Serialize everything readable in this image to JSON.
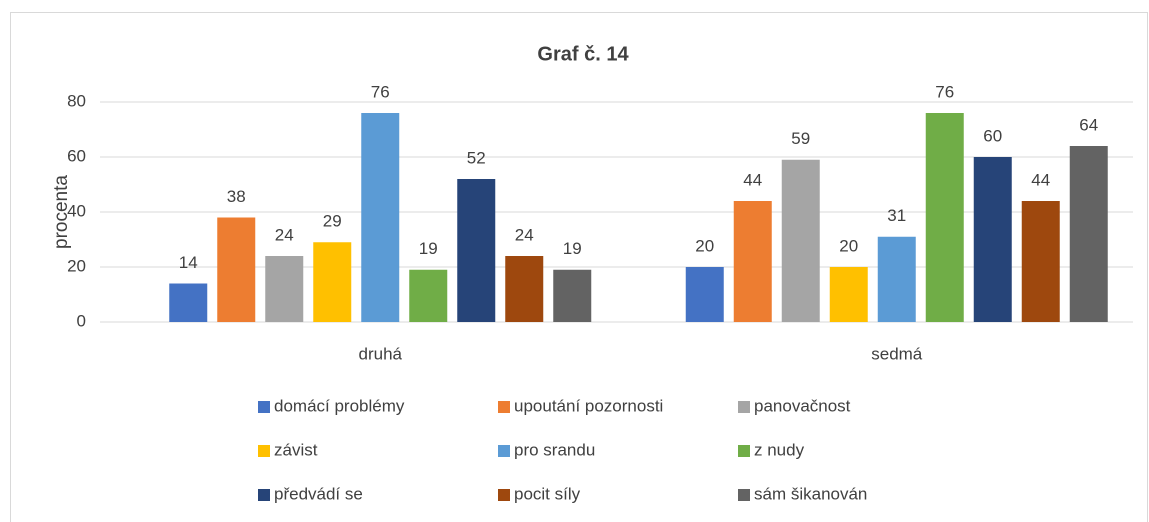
{
  "chart_data": {
    "type": "bar",
    "title": "Graf č. 14",
    "y_label": "procenta",
    "categories": [
      "druhá",
      "sedmá"
    ],
    "series": [
      {
        "name": "domácí problémy",
        "color": "#4472c4",
        "values": [
          14,
          20
        ]
      },
      {
        "name": "upoutání pozornosti",
        "color": "#ed7d31",
        "values": [
          38,
          44
        ]
      },
      {
        "name": "panovačnost",
        "color": "#a5a5a5",
        "values": [
          24,
          59
        ]
      },
      {
        "name": "závist",
        "color": "#ffc000",
        "values": [
          29,
          20
        ]
      },
      {
        "name": "pro srandu",
        "color": "#5b9bd5",
        "values": [
          76,
          31
        ]
      },
      {
        "name": "z nudy",
        "color": "#70ad47",
        "values": [
          19,
          76
        ]
      },
      {
        "name": "předvádí se",
        "color": "#264478",
        "values": [
          52,
          60
        ]
      },
      {
        "name": "pocit síly",
        "color": "#9e480e",
        "values": [
          24,
          44
        ]
      },
      {
        "name": "sám šikanován",
        "color": "#636363",
        "values": [
          19,
          64
        ]
      }
    ],
    "ylim": [
      0,
      80
    ],
    "yticks": [
      0,
      20,
      40,
      60,
      80
    ],
    "grid": true,
    "legend": "bottom"
  }
}
